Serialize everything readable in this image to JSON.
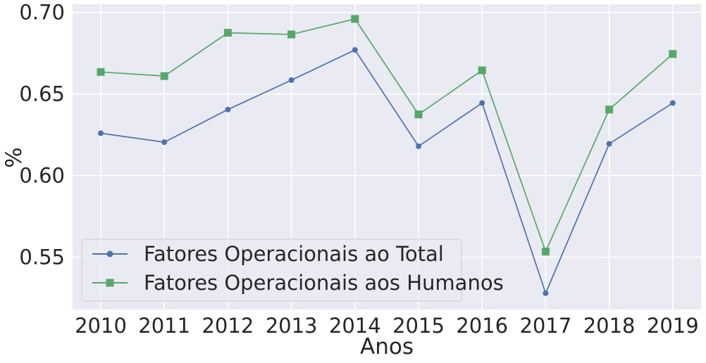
{
  "chart_data": {
    "type": "line",
    "title": "",
    "xlabel": "Anos",
    "ylabel": "%",
    "x": [
      2010,
      2011,
      2012,
      2013,
      2014,
      2015,
      2016,
      2017,
      2018,
      2019
    ],
    "x_tick_labels": [
      "2010",
      "2011",
      "2012",
      "2013",
      "2014",
      "2015",
      "2016",
      "2017",
      "2018",
      "2019"
    ],
    "y_ticks": [
      0.55,
      0.6,
      0.65,
      0.7
    ],
    "y_tick_labels": [
      "0.55",
      "0.60",
      "0.65",
      "0.70"
    ],
    "ylim": [
      0.518,
      0.705
    ],
    "grid": true,
    "legend_position": "lower-left",
    "series": [
      {
        "name": "Fatores Operacionais ao Total",
        "color": "#4c72b0",
        "marker": "circle",
        "values": [
          0.626,
          0.6205,
          0.6405,
          0.6585,
          0.677,
          0.618,
          0.6445,
          0.528,
          0.6195,
          0.6445
        ]
      },
      {
        "name": "Fatores Operacionais aos Humanos",
        "color": "#55a868",
        "marker": "square",
        "values": [
          0.6635,
          0.661,
          0.6875,
          0.6865,
          0.696,
          0.6375,
          0.6645,
          0.5535,
          0.6405,
          0.6745
        ]
      }
    ]
  }
}
